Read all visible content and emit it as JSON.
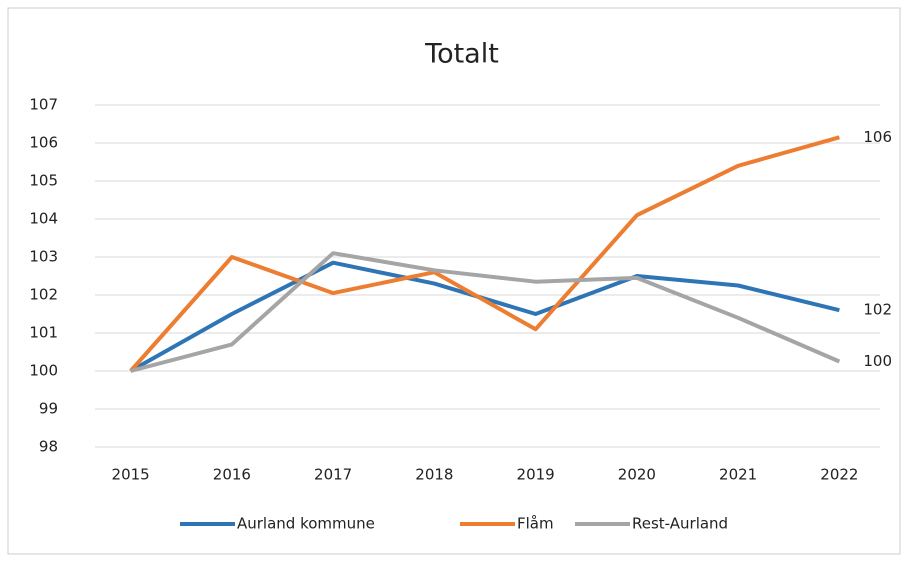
{
  "chart_data": {
    "type": "line",
    "title": "Totalt",
    "categories": [
      "2015",
      "2016",
      "2017",
      "2018",
      "2019",
      "2020",
      "2021",
      "2022"
    ],
    "series": [
      {
        "name": "Aurland kommune",
        "color": "#2e75b6",
        "values": [
          100,
          101.5,
          102.85,
          102.3,
          101.5,
          102.5,
          102.25,
          101.6
        ],
        "value_labels": [
          null,
          null,
          null,
          null,
          null,
          null,
          null,
          "102"
        ]
      },
      {
        "name": "Flåm",
        "color": "#ed7d31",
        "values": [
          100,
          103.0,
          102.05,
          102.6,
          101.1,
          104.1,
          105.4,
          106.15
        ],
        "value_labels": [
          null,
          null,
          null,
          null,
          null,
          null,
          null,
          "106"
        ]
      },
      {
        "name": "Rest-Aurland",
        "color": "#a5a5a5",
        "values": [
          100,
          100.7,
          103.1,
          102.65,
          102.35,
          102.45,
          101.4,
          100.25
        ],
        "value_labels": [
          null,
          null,
          null,
          null,
          null,
          null,
          null,
          "100"
        ]
      }
    ],
    "ylim": [
      98,
      107
    ],
    "yticks": [
      98,
      99,
      100,
      101,
      102,
      103,
      104,
      105,
      106,
      107
    ],
    "grid": true,
    "legend": "bottom"
  }
}
